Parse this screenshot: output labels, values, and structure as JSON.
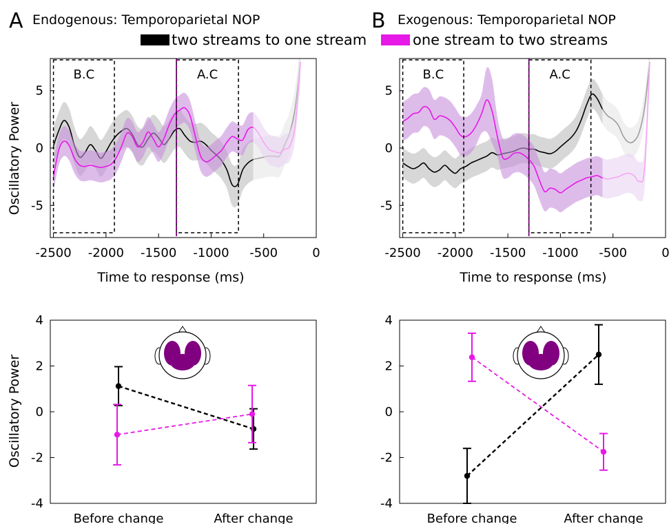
{
  "legend": {
    "series_black": "two streams to one stream",
    "series_magenta": "one stream to two streams"
  },
  "colors": {
    "black": "#000000",
    "magenta": "#e619e6",
    "black_band": "#bdbdbd",
    "magenta_band": "#c88fdc",
    "head_fill": "#800080",
    "event_line": "#800080"
  },
  "icons": [
    "scalp-topography-icon"
  ],
  "panels": [
    {
      "letter": "A",
      "title": "Endogenous: Temporoparietal NOP",
      "boxes": [
        {
          "label": "B.C",
          "x0": -2500,
          "x1": -1920
        },
        {
          "label": "A.C",
          "x0": -1330,
          "x1": -740
        }
      ],
      "event_x": -1330
    },
    {
      "letter": "B",
      "title": "Exogenous: Temporoparietal NOP",
      "boxes": [
        {
          "label": "B.C",
          "x0": -2500,
          "x1": -1920
        },
        {
          "label": "A.C",
          "x0": -1300,
          "x1": -710
        }
      ],
      "event_x": -1300
    }
  ],
  "chart_data": [
    {
      "type": "line",
      "panel": "A",
      "title": "Endogenous: Temporoparietal NOP",
      "xlabel": "Time to response (ms)",
      "ylabel": "Oscillatory Power",
      "xlim": [
        -2530,
        0
      ],
      "ylim": [
        -7.8,
        7.8
      ],
      "xticks": [
        -2500,
        -2000,
        -1500,
        -1000,
        -500,
        0
      ],
      "yticks": [
        -5,
        0,
        5
      ],
      "faded_after_x": -600,
      "grid": false,
      "legend_position": "top",
      "series": [
        {
          "name": "two streams to one stream",
          "color": "black",
          "x": [
            -2500,
            -2450,
            -2400,
            -2350,
            -2300,
            -2250,
            -2200,
            -2150,
            -2100,
            -2050,
            -2000,
            -1950,
            -1900,
            -1850,
            -1800,
            -1750,
            -1700,
            -1650,
            -1600,
            -1550,
            -1500,
            -1450,
            -1400,
            -1350,
            -1300,
            -1250,
            -1200,
            -1150,
            -1100,
            -1050,
            -1000,
            -950,
            -900,
            -850,
            -800,
            -750,
            -700,
            -650,
            -600,
            -550,
            -500,
            -450,
            -400,
            -350,
            -300,
            -250,
            -200,
            -150
          ],
          "y": [
            0.2,
            1.5,
            2.4,
            1.8,
            0.2,
            -0.8,
            -0.4,
            0.3,
            -0.2,
            -0.9,
            -0.3,
            0.5,
            1.1,
            1.5,
            1.7,
            1.2,
            0.3,
            0.1,
            0.8,
            1.3,
            0.9,
            0.3,
            0.8,
            1.5,
            1.7,
            1.1,
            0.6,
            0.5,
            0.6,
            0.3,
            -0.2,
            -0.6,
            -1.1,
            -1.9,
            -3.2,
            -3.2,
            -1.9,
            -1.3,
            -1.0,
            -0.9,
            -0.8,
            -0.7,
            -0.7,
            -0.7,
            0.3,
            1.4,
            3.5,
            7.5
          ],
          "err": [
            1.6,
            1.6,
            1.6,
            1.6,
            1.6,
            1.6,
            1.6,
            1.6,
            1.6,
            1.6,
            1.6,
            1.6,
            1.6,
            1.6,
            1.6,
            1.6,
            1.6,
            1.6,
            1.6,
            1.6,
            1.6,
            1.6,
            1.6,
            1.6,
            1.6,
            1.6,
            1.6,
            1.6,
            1.6,
            1.6,
            1.6,
            1.6,
            1.6,
            1.6,
            1.8,
            1.8,
            1.8,
            1.8,
            1.8,
            1.8,
            1.8,
            1.8,
            1.8,
            1.8,
            1.8,
            1.8,
            1.8,
            1.8
          ]
        },
        {
          "name": "one stream to two streams",
          "color": "magenta",
          "x": [
            -2500,
            -2450,
            -2400,
            -2350,
            -2300,
            -2250,
            -2200,
            -2150,
            -2100,
            -2050,
            -2000,
            -1950,
            -1900,
            -1850,
            -1800,
            -1750,
            -1700,
            -1650,
            -1600,
            -1550,
            -1500,
            -1450,
            -1400,
            -1350,
            -1300,
            -1250,
            -1200,
            -1150,
            -1100,
            -1050,
            -1000,
            -950,
            -900,
            -850,
            -800,
            -750,
            -700,
            -650,
            -600,
            -550,
            -500,
            -450,
            -400,
            -350,
            -300,
            -250,
            -200,
            -150
          ],
          "y": [
            -2.5,
            -0.2,
            0.6,
            0.2,
            -0.9,
            -1.5,
            -1.6,
            -1.5,
            -1.6,
            -1.7,
            -1.6,
            -1.4,
            -0.8,
            0.2,
            1.3,
            1.0,
            0.1,
            0.5,
            1.4,
            0.8,
            0.1,
            0.8,
            2.0,
            2.9,
            3.3,
            3.5,
            2.8,
            1.0,
            -0.7,
            -1.2,
            -1.0,
            -0.6,
            -0.2,
            0.5,
            1.0,
            0.8,
            0.7,
            1.6,
            1.8,
            1.3,
            0.5,
            -0.1,
            -0.3,
            -0.4,
            -0.1,
            0.2,
            2.0,
            7.5
          ],
          "err": [
            1.3,
            1.3,
            1.3,
            1.3,
            1.3,
            1.3,
            1.3,
            1.3,
            1.3,
            1.3,
            1.3,
            1.3,
            1.3,
            1.3,
            1.3,
            1.3,
            1.3,
            1.3,
            1.3,
            1.3,
            1.3,
            1.3,
            1.3,
            1.3,
            1.3,
            1.3,
            1.3,
            1.3,
            1.3,
            1.3,
            1.3,
            1.3,
            1.3,
            1.3,
            1.3,
            1.3,
            1.3,
            1.3,
            1.3,
            1.3,
            1.3,
            1.3,
            1.3,
            1.3,
            1.3,
            1.3,
            1.3,
            1.3
          ]
        }
      ]
    },
    {
      "type": "line",
      "panel": "B",
      "title": "Exogenous: Temporoparietal NOP",
      "xlabel": "Time to response (ms)",
      "ylabel": "",
      "xlim": [
        -2530,
        0
      ],
      "ylim": [
        -7.8,
        7.8
      ],
      "xticks": [
        -2500,
        -2000,
        -1500,
        -1000,
        -500,
        0
      ],
      "yticks": [
        -5,
        0,
        5
      ],
      "faded_after_x": -600,
      "grid": false,
      "legend_position": "top",
      "series": [
        {
          "name": "two streams to one stream",
          "color": "black",
          "x": [
            -2500,
            -2450,
            -2400,
            -2350,
            -2300,
            -2250,
            -2200,
            -2150,
            -2100,
            -2050,
            -2000,
            -1950,
            -1900,
            -1850,
            -1800,
            -1750,
            -1700,
            -1650,
            -1600,
            -1550,
            -1500,
            -1450,
            -1400,
            -1350,
            -1300,
            -1250,
            -1200,
            -1150,
            -1100,
            -1050,
            -1000,
            -950,
            -900,
            -850,
            -800,
            -750,
            -700,
            -650,
            -600,
            -550,
            -500,
            -450,
            -400,
            -350,
            -300,
            -250,
            -200,
            -150
          ],
          "y": [
            -1.3,
            -1.6,
            -1.8,
            -1.6,
            -1.3,
            -1.8,
            -2.1,
            -1.9,
            -1.5,
            -1.9,
            -2.2,
            -1.8,
            -1.6,
            -1.3,
            -1.1,
            -0.9,
            -0.7,
            -0.4,
            -0.6,
            -0.5,
            -0.4,
            -0.3,
            -0.1,
            0.0,
            -0.1,
            -0.1,
            -0.3,
            -0.4,
            -0.5,
            -0.3,
            0.1,
            0.5,
            0.9,
            1.5,
            2.5,
            3.8,
            4.7,
            4.3,
            3.4,
            2.8,
            2.5,
            2.0,
            1.0,
            0.5,
            0.6,
            1.4,
            3.5,
            7.5
          ],
          "err": [
            1.3,
            1.3,
            1.3,
            1.3,
            1.3,
            1.3,
            1.3,
            1.3,
            1.3,
            1.3,
            1.3,
            1.3,
            1.3,
            1.3,
            1.3,
            1.3,
            1.3,
            1.3,
            1.3,
            1.3,
            1.3,
            1.3,
            1.3,
            1.3,
            1.3,
            1.3,
            1.3,
            1.3,
            1.3,
            1.3,
            1.3,
            1.3,
            1.3,
            1.3,
            1.3,
            1.3,
            1.3,
            1.3,
            1.3,
            1.3,
            1.3,
            1.3,
            1.3,
            1.3,
            1.3,
            1.3,
            1.3,
            1.3
          ]
        },
        {
          "name": "one stream to two streams",
          "color": "magenta",
          "x": [
            -2500,
            -2450,
            -2400,
            -2350,
            -2300,
            -2250,
            -2200,
            -2150,
            -2100,
            -2050,
            -2000,
            -1950,
            -1900,
            -1850,
            -1800,
            -1750,
            -1700,
            -1650,
            -1600,
            -1550,
            -1500,
            -1450,
            -1400,
            -1350,
            -1300,
            -1250,
            -1200,
            -1150,
            -1100,
            -1050,
            -1000,
            -950,
            -900,
            -850,
            -800,
            -750,
            -700,
            -650,
            -600,
            -550,
            -500,
            -450,
            -400,
            -350,
            -300,
            -250,
            -200,
            -150
          ],
          "y": [
            2.3,
            2.6,
            3.0,
            3.1,
            3.6,
            3.4,
            2.5,
            2.8,
            2.7,
            2.4,
            1.8,
            1.1,
            1.0,
            1.3,
            2.0,
            3.0,
            4.2,
            3.2,
            1.0,
            -0.8,
            -0.9,
            -0.5,
            -0.4,
            -0.6,
            -1.0,
            -1.6,
            -2.8,
            -3.8,
            -3.5,
            -3.6,
            -3.9,
            -3.6,
            -3.3,
            -3.0,
            -2.8,
            -2.6,
            -2.5,
            -2.4,
            -2.6,
            -2.7,
            -2.6,
            -2.5,
            -2.3,
            -2.2,
            -2.4,
            -2.9,
            -1.8,
            7.5
          ],
          "err": [
            1.7,
            1.7,
            1.7,
            1.7,
            1.7,
            1.7,
            1.7,
            1.7,
            1.7,
            1.7,
            1.7,
            1.7,
            1.7,
            1.7,
            1.7,
            1.7,
            2.8,
            2.8,
            1.7,
            1.7,
            1.7,
            1.7,
            1.7,
            1.7,
            1.7,
            1.7,
            1.7,
            1.7,
            1.7,
            1.7,
            1.7,
            1.7,
            1.7,
            1.7,
            1.7,
            1.7,
            1.7,
            1.7,
            1.7,
            1.7,
            1.7,
            1.7,
            1.7,
            1.7,
            1.7,
            1.7,
            1.7,
            1.7
          ]
        }
      ]
    },
    {
      "type": "line",
      "panel": "A-bottom",
      "ylabel": "Oscillatory Power",
      "categories": [
        "Before change",
        "After change"
      ],
      "ylim": [
        -4,
        4
      ],
      "yticks": [
        -4,
        -2,
        0,
        2,
        4
      ],
      "series": [
        {
          "name": "two streams to one stream",
          "color": "black",
          "values": [
            1.12,
            -0.75
          ],
          "err": [
            0.85,
            0.88
          ]
        },
        {
          "name": "one stream to two streams",
          "color": "magenta",
          "values": [
            -1.0,
            -0.1
          ],
          "err": [
            1.32,
            1.25
          ]
        }
      ]
    },
    {
      "type": "line",
      "panel": "B-bottom",
      "ylabel": "",
      "categories": [
        "Before change",
        "After change"
      ],
      "ylim": [
        -4,
        4
      ],
      "yticks": [
        -4,
        -2,
        0,
        2,
        4
      ],
      "series": [
        {
          "name": "two streams to one stream",
          "color": "black",
          "values": [
            -2.8,
            2.5
          ],
          "err": [
            1.2,
            1.3
          ]
        },
        {
          "name": "one stream to two streams",
          "color": "magenta",
          "values": [
            2.38,
            -1.75
          ],
          "err": [
            1.05,
            0.8
          ]
        }
      ]
    }
  ]
}
